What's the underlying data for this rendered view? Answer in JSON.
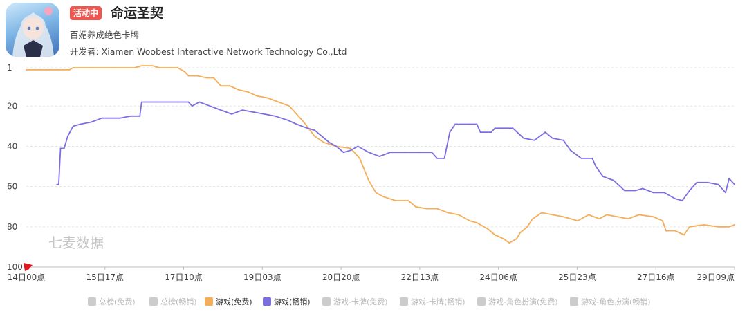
{
  "header": {
    "status_badge": "活动中",
    "app_name": "命运圣契",
    "genre": "百媚养成绝色卡牌",
    "developer": "开发者: Xiamen Woobest Interactive Network Technology Co.,Ltd"
  },
  "watermark": "七麦数据",
  "colors": {
    "free_series": "#f4ad58",
    "grossing_series": "#7b6fe0",
    "inactive_legend": "#cccccc",
    "gridline": "#e3e3e3",
    "axis_marker": "#e0181f"
  },
  "legend": [
    {
      "label": "总榜(免费)",
      "active": false
    },
    {
      "label": "总榜(畅销)",
      "active": false
    },
    {
      "label": "游戏(免费)",
      "active": true,
      "color": "#f4ad58"
    },
    {
      "label": "游戏(畅销)",
      "active": true,
      "color": "#7b6fe0"
    },
    {
      "label": "游戏-卡牌(免费)",
      "active": false
    },
    {
      "label": "游戏-卡牌(畅销)",
      "active": false
    },
    {
      "label": "游戏-角色扮演(免费)",
      "active": false
    },
    {
      "label": "游戏-角色扮演(畅销)",
      "active": false
    }
  ],
  "chart_data": {
    "type": "line",
    "x_ticks": [
      "14日00点",
      "15日17点",
      "17日10点",
      "19日03点",
      "20日20点",
      "22日13点",
      "24日06点",
      "25日23点",
      "27日16点",
      "29日09点"
    ],
    "y_ticks": [
      1,
      20,
      40,
      60,
      80,
      100
    ],
    "ylim": [
      1,
      100
    ],
    "y_inverted": true,
    "x_unit": "hours since 14日00点",
    "xlim": [
      0,
      393
    ],
    "grid": true,
    "series": [
      {
        "name": "游戏(免费)",
        "color": "#f4ad58",
        "points": [
          [
            0,
            2
          ],
          [
            12,
            2
          ],
          [
            24,
            2
          ],
          [
            26,
            1
          ],
          [
            35,
            1
          ],
          [
            48,
            1
          ],
          [
            60,
            1
          ],
          [
            64,
            0
          ],
          [
            70,
            0
          ],
          [
            74,
            1
          ],
          [
            80,
            1
          ],
          [
            84,
            1
          ],
          [
            88,
            3
          ],
          [
            90,
            5
          ],
          [
            95,
            5
          ],
          [
            100,
            6
          ],
          [
            104,
            6
          ],
          [
            108,
            10
          ],
          [
            113,
            10
          ],
          [
            118,
            12
          ],
          [
            123,
            13
          ],
          [
            128,
            15
          ],
          [
            134,
            16
          ],
          [
            140,
            18
          ],
          [
            146,
            20
          ],
          [
            150,
            24
          ],
          [
            154,
            28
          ],
          [
            160,
            35
          ],
          [
            165,
            38
          ],
          [
            172,
            40
          ],
          [
            180,
            41
          ],
          [
            185,
            46
          ],
          [
            190,
            57
          ],
          [
            194,
            63
          ],
          [
            198,
            65
          ],
          [
            205,
            67
          ],
          [
            212,
            67
          ],
          [
            216,
            70
          ],
          [
            222,
            71
          ],
          [
            228,
            71
          ],
          [
            234,
            73
          ],
          [
            240,
            74
          ],
          [
            246,
            77
          ],
          [
            250,
            78
          ],
          [
            256,
            81
          ],
          [
            260,
            84
          ],
          [
            265,
            86
          ],
          [
            268,
            88
          ],
          [
            272,
            86
          ],
          [
            274,
            83
          ],
          [
            278,
            80
          ],
          [
            281,
            76
          ],
          [
            286,
            73
          ],
          [
            292,
            74
          ],
          [
            298,
            75
          ],
          [
            306,
            77
          ],
          [
            312,
            74
          ],
          [
            318,
            76
          ],
          [
            322,
            74
          ],
          [
            328,
            75
          ],
          [
            334,
            76
          ],
          [
            340,
            74
          ],
          [
            348,
            75
          ],
          [
            353,
            77
          ],
          [
            355,
            82
          ],
          [
            360,
            82
          ],
          [
            365,
            84
          ],
          [
            368,
            80
          ],
          [
            376,
            79
          ],
          [
            384,
            80
          ],
          [
            390,
            80
          ],
          [
            393,
            79
          ]
        ]
      },
      {
        "name": "游戏(畅销)",
        "color": "#7b6fe0",
        "points": [
          [
            17,
            59
          ],
          [
            18,
            59
          ],
          [
            19,
            41
          ],
          [
            21,
            41
          ],
          [
            23,
            35
          ],
          [
            26,
            30
          ],
          [
            30,
            29
          ],
          [
            36,
            28
          ],
          [
            42,
            26
          ],
          [
            52,
            26
          ],
          [
            58,
            25
          ],
          [
            63,
            25
          ],
          [
            64,
            18
          ],
          [
            72,
            18
          ],
          [
            84,
            18
          ],
          [
            90,
            18
          ],
          [
            92,
            20
          ],
          [
            96,
            18
          ],
          [
            102,
            20
          ],
          [
            108,
            22
          ],
          [
            114,
            24
          ],
          [
            120,
            22
          ],
          [
            126,
            23
          ],
          [
            132,
            24
          ],
          [
            138,
            25
          ],
          [
            145,
            27
          ],
          [
            150,
            29
          ],
          [
            156,
            31
          ],
          [
            160,
            32
          ],
          [
            164,
            35
          ],
          [
            168,
            38
          ],
          [
            172,
            40
          ],
          [
            176,
            43
          ],
          [
            180,
            42
          ],
          [
            184,
            40
          ],
          [
            190,
            43
          ],
          [
            196,
            45
          ],
          [
            202,
            43
          ],
          [
            210,
            43
          ],
          [
            218,
            43
          ],
          [
            225,
            43
          ],
          [
            228,
            46
          ],
          [
            232,
            46
          ],
          [
            235,
            33
          ],
          [
            238,
            29
          ],
          [
            246,
            29
          ],
          [
            250,
            29
          ],
          [
            252,
            33
          ],
          [
            258,
            33
          ],
          [
            260,
            31
          ],
          [
            266,
            31
          ],
          [
            270,
            31
          ],
          [
            276,
            36
          ],
          [
            282,
            37
          ],
          [
            288,
            33
          ],
          [
            292,
            36
          ],
          [
            298,
            37
          ],
          [
            302,
            42
          ],
          [
            308,
            46
          ],
          [
            314,
            46
          ],
          [
            316,
            50
          ],
          [
            320,
            55
          ],
          [
            326,
            57
          ],
          [
            332,
            62
          ],
          [
            338,
            62
          ],
          [
            342,
            61
          ],
          [
            348,
            63
          ],
          [
            354,
            63
          ],
          [
            360,
            66
          ],
          [
            364,
            67
          ],
          [
            368,
            62
          ],
          [
            372,
            58
          ],
          [
            378,
            58
          ],
          [
            384,
            59
          ],
          [
            388,
            63
          ],
          [
            390,
            56
          ],
          [
            393,
            59
          ]
        ]
      }
    ]
  }
}
